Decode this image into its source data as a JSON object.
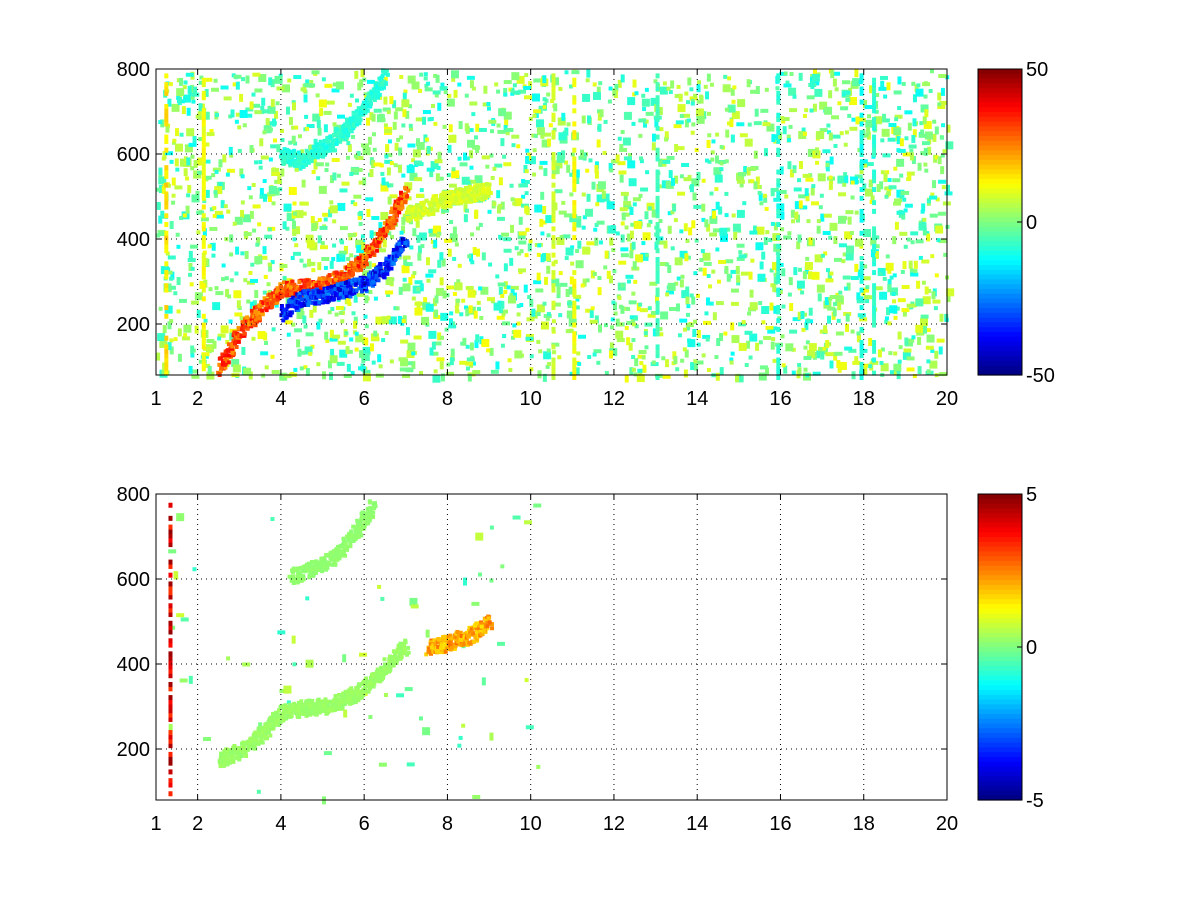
{
  "chart_data": [
    {
      "type": "heatmap",
      "title": "",
      "xlabel": "",
      "ylabel": "",
      "xlim": [
        1,
        20
      ],
      "ylim": [
        80,
        800
      ],
      "grid": true,
      "x_ticks": [
        1,
        2,
        4,
        6,
        8,
        10,
        12,
        14,
        16,
        18,
        20
      ],
      "y_ticks": [
        200,
        400,
        600,
        800
      ],
      "colormap": "jet",
      "colorbar": {
        "min": -50,
        "max": 50,
        "ticks": [
          50,
          0,
          -50
        ]
      },
      "features": [
        {
          "name": "rising band",
          "value": 35,
          "points": [
            [
              2.5,
              100
            ],
            [
              3.0,
              190
            ],
            [
              3.5,
              240
            ],
            [
              4.0,
              285
            ],
            [
              4.5,
              290
            ],
            [
              5.0,
              295
            ],
            [
              5.5,
              320
            ],
            [
              6.0,
              360
            ],
            [
              6.5,
              430
            ],
            [
              7.0,
              520
            ]
          ]
        },
        {
          "name": "lower band",
          "value": -40,
          "points": [
            [
              4.0,
              230
            ],
            [
              4.5,
              265
            ],
            [
              5.0,
              270
            ],
            [
              5.5,
              285
            ],
            [
              6.0,
              300
            ],
            [
              6.5,
              340
            ],
            [
              7.0,
              410
            ]
          ]
        },
        {
          "name": "upper branch",
          "value": -10,
          "points": [
            [
              4.0,
              600
            ],
            [
              4.5,
              590
            ],
            [
              5.0,
              620
            ],
            [
              5.5,
              660
            ],
            [
              6.0,
              720
            ],
            [
              6.5,
              790
            ]
          ]
        },
        {
          "name": "tail",
          "value": 10,
          "points": [
            [
              7.0,
              460
            ],
            [
              7.5,
              480
            ],
            [
              8.0,
              500
            ],
            [
              8.5,
              510
            ],
            [
              9.0,
              520
            ]
          ]
        }
      ],
      "stripes": [
        {
          "x": 1.2,
          "value": 15
        },
        {
          "x": 2.1,
          "value": 12
        },
        {
          "x": 10.5,
          "value": 8
        },
        {
          "x": 11.0,
          "value": 12
        },
        {
          "x": 13.0,
          "value": -6
        },
        {
          "x": 15.9,
          "value": -8
        },
        {
          "x": 17.9,
          "value": -10
        },
        {
          "x": 18.2,
          "value": -8
        }
      ]
    },
    {
      "type": "heatmap",
      "title": "",
      "xlabel": "",
      "ylabel": "",
      "xlim": [
        1,
        20
      ],
      "ylim": [
        80,
        800
      ],
      "grid": true,
      "x_ticks": [
        1,
        2,
        4,
        6,
        8,
        10,
        12,
        14,
        16,
        18,
        20
      ],
      "y_ticks": [
        200,
        400,
        600,
        800
      ],
      "colormap": "jet",
      "colorbar": {
        "min": -5,
        "max": 5,
        "ticks": [
          5,
          0,
          -5
        ]
      },
      "features": [
        {
          "name": "rising band",
          "value": 0.3,
          "points": [
            [
              2.5,
              180
            ],
            [
              3.0,
              200
            ],
            [
              3.5,
              240
            ],
            [
              4.0,
              290
            ],
            [
              4.5,
              300
            ],
            [
              5.0,
              305
            ],
            [
              5.5,
              320
            ],
            [
              6.0,
              350
            ],
            [
              6.5,
              400
            ],
            [
              7.0,
              450
            ]
          ]
        },
        {
          "name": "upper branch",
          "value": 0.2,
          "points": [
            [
              4.2,
              610
            ],
            [
              4.8,
              630
            ],
            [
              5.3,
              660
            ],
            [
              5.8,
              720
            ],
            [
              6.2,
              780
            ]
          ]
        },
        {
          "name": "tail",
          "value": 2.5,
          "points": [
            [
              7.5,
              440
            ],
            [
              8.0,
              455
            ],
            [
              8.5,
              470
            ],
            [
              9.0,
              505
            ]
          ]
        }
      ],
      "stripes": [
        {
          "x": 1.3,
          "value": 4
        }
      ]
    }
  ]
}
